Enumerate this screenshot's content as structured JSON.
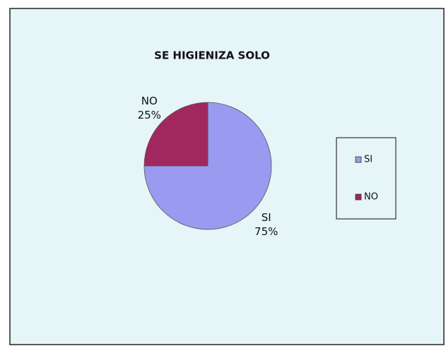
{
  "chart_data": {
    "type": "pie",
    "title": "SE HIGIENIZA SOLO",
    "categories": [
      "SI",
      "NO"
    ],
    "values": [
      75,
      25
    ],
    "value_labels": [
      "75%",
      "25%"
    ],
    "colors": [
      "#9a9af0",
      "#a0285e"
    ],
    "legend": "right"
  }
}
